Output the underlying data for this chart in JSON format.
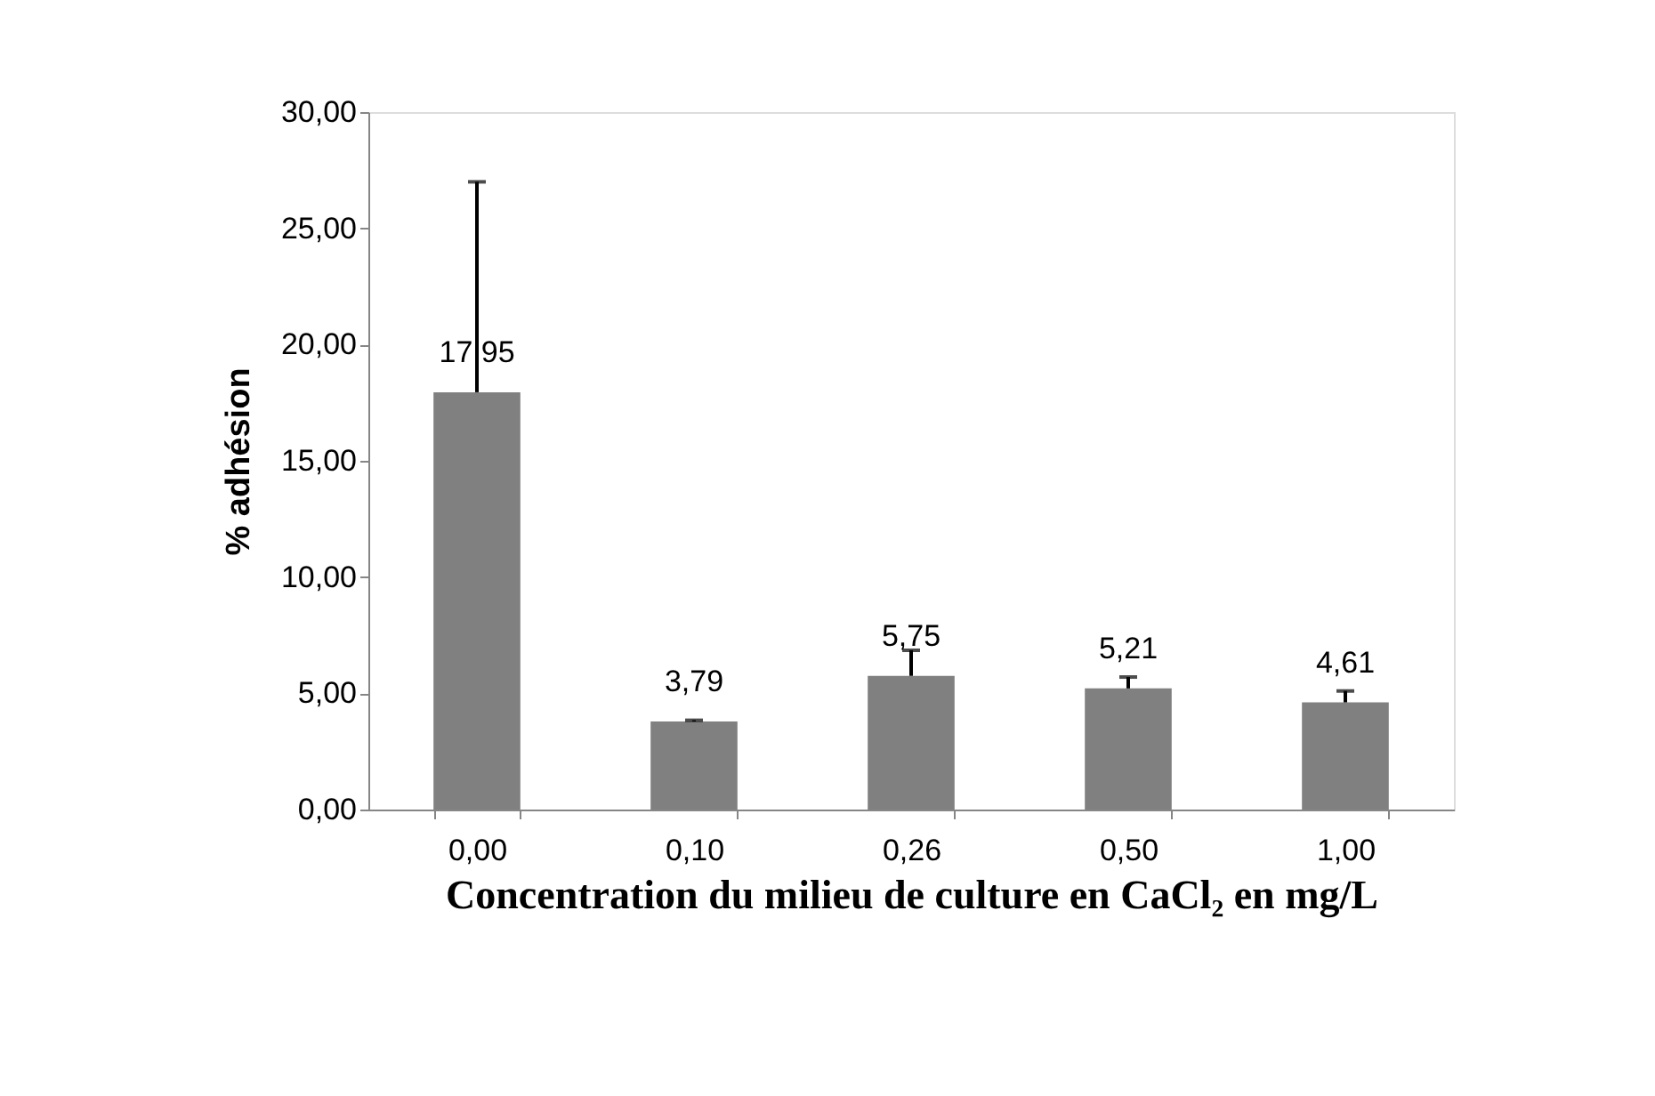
{
  "chart_data": {
    "type": "bar",
    "xlabel": "Concentration du milieu de culture en CaCl₂ en mg/L",
    "ylabel": "% adhésion",
    "categories": [
      "0,00",
      "0,10",
      "0,26",
      "0,50",
      "1,00"
    ],
    "values": [
      17.95,
      3.79,
      5.75,
      5.21,
      4.61
    ],
    "value_labels": [
      "17,95",
      "3,79",
      "5,75",
      "5,21",
      "4,61"
    ],
    "errors": [
      [
        17.95,
        27.0
      ],
      [
        3.79,
        3.84
      ],
      [
        5.75,
        6.85
      ],
      [
        5.21,
        5.7
      ],
      [
        4.61,
        5.1
      ]
    ],
    "color": "#808080",
    "ylim": [
      0,
      30
    ],
    "yticks": [
      {
        "value": 0,
        "label": "0,00"
      },
      {
        "value": 5,
        "label": "5,00"
      },
      {
        "value": 10,
        "label": "10,00"
      },
      {
        "value": 15,
        "label": "15,00"
      },
      {
        "value": 20,
        "label": "20,00"
      },
      {
        "value": 25,
        "label": "25,00"
      },
      {
        "value": 30,
        "label": "30,00"
      }
    ],
    "grid": false
  }
}
